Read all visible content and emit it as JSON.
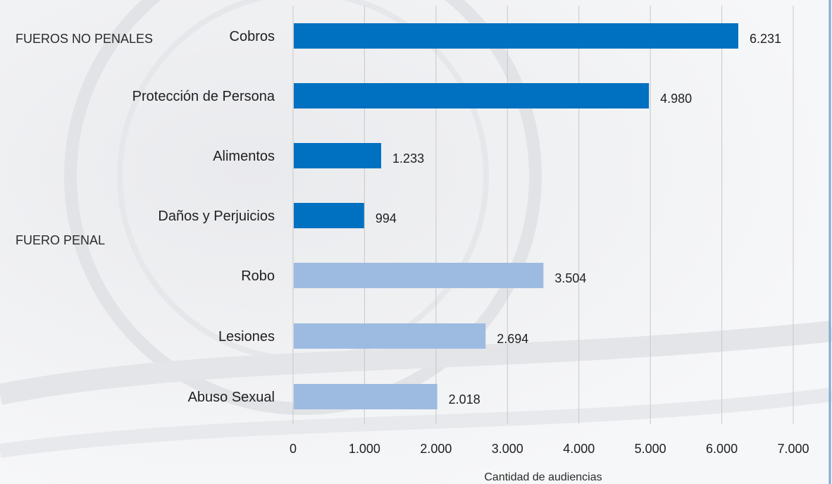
{
  "chart_data": {
    "type": "bar",
    "orientation": "horizontal",
    "categories": [
      "Cobros",
      "Protección de Persona",
      "Alimentos",
      "Daños y Perjuicios",
      "Robo",
      "Lesiones",
      "Abuso Sexual"
    ],
    "values": [
      6231,
      4980,
      1233,
      994,
      3504,
      2694,
      2018
    ],
    "value_labels": [
      "6.231",
      "4.980",
      "1.233",
      "994",
      "3.504",
      "2.694",
      "2.018"
    ],
    "groups": [
      "FUEROS NO PENALES",
      "FUEROS NO PENALES",
      "FUEROS NO PENALES",
      "FUEROS NO PENALES",
      "FUERO PENAL",
      "FUERO PENAL",
      "FUERO PENAL"
    ],
    "group_labels": [
      "FUEROS NO PENALES",
      "FUERO PENAL"
    ],
    "group_colors": {
      "FUEROS NO PENALES": "#0070c0",
      "FUERO PENAL": "#9dbbe0"
    },
    "xlim": [
      0,
      7000
    ],
    "xticks": [
      0,
      1000,
      2000,
      3000,
      4000,
      5000,
      6000,
      7000
    ],
    "xtick_labels": [
      "0",
      "1.000",
      "2.000",
      "3.000",
      "4.000",
      "5.000",
      "6.000",
      "7.000"
    ],
    "xlabel": "Cantidad de audiencias",
    "ylabel": "",
    "title": "",
    "grid": "vertical"
  },
  "colors": {
    "gridline": "#c8c8c8",
    "right_border": "#7fa9d6"
  }
}
